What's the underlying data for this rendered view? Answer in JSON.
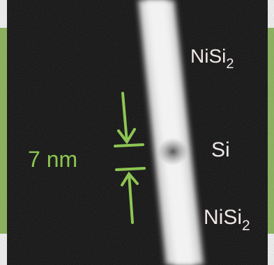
{
  "labels": [
    {
      "main": "NiSi",
      "sub": "2"
    },
    {
      "main": "Si"
    },
    {
      "main": "NiSi",
      "sub": "2"
    }
  ],
  "scale": "7 nm"
}
